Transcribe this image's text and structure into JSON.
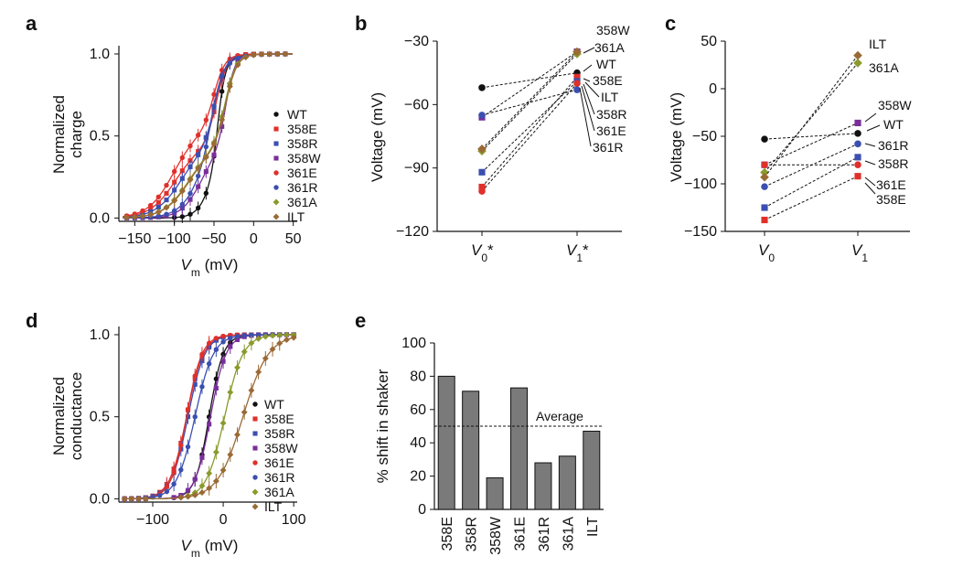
{
  "colors": {
    "WT": "#111111",
    "358E": "#e0302a",
    "358R": "#3b4fb0",
    "358W": "#7a2e9a",
    "361E": "#e0302a",
    "361R": "#3b4fb0",
    "361A": "#8a9a2c",
    "ILT": "#9a6a35",
    "bar": "#7a7a7a"
  },
  "chart_data": [
    {
      "panel": "a",
      "type": "scatter",
      "xlabel": "Vm (mV)",
      "ylabel": "Normalized charge",
      "xlim": [
        -170,
        55
      ],
      "ylim": [
        -0.02,
        1.05
      ],
      "xticks": [
        "-150",
        "-100",
        "-50",
        "0",
        "50"
      ],
      "yticks": [
        "0.0",
        "0.5",
        "1.0"
      ],
      "legend": [
        "WT",
        "358E",
        "358R",
        "358W",
        "361E",
        "361R",
        "361A",
        "ILT"
      ],
      "legend_position": "right",
      "series": [
        {
          "name": "WT",
          "V1": -45,
          "V0": -52,
          "k": 6
        },
        {
          "name": "358E",
          "V1": -47,
          "V0": -99,
          "k": 10
        },
        {
          "name": "358R",
          "V1": -49,
          "V0": -92,
          "k": 10
        },
        {
          "name": "358W",
          "V1": -35,
          "V0": -66,
          "k": 8
        },
        {
          "name": "361E",
          "V1": -50,
          "V0": -101,
          "k": 10
        },
        {
          "name": "361R",
          "V1": -53,
          "V0": -65,
          "k": 9
        },
        {
          "name": "361A",
          "V1": -36,
          "V0": -82,
          "k": 10
        },
        {
          "name": "ILT",
          "V1": -35,
          "V0": -81,
          "k": 10
        }
      ]
    },
    {
      "panel": "b",
      "type": "line",
      "ylabel": "Voltage (mV)",
      "ylim": [
        -120,
        -30
      ],
      "yticks": [
        "-30",
        "-60",
        "-90",
        "-120"
      ],
      "categories": [
        "V0*",
        "V1*"
      ],
      "series": [
        {
          "name": "WT",
          "values": [
            -52,
            -45
          ]
        },
        {
          "name": "358E",
          "values": [
            -99,
            -47
          ]
        },
        {
          "name": "358R",
          "values": [
            -92,
            -49
          ]
        },
        {
          "name": "358W",
          "values": [
            -66,
            -35
          ]
        },
        {
          "name": "361E",
          "values": [
            -101,
            -50
          ]
        },
        {
          "name": "361R",
          "values": [
            -65,
            -53
          ]
        },
        {
          "name": "361A",
          "values": [
            -82,
            -36
          ]
        },
        {
          "name": "ILT",
          "values": [
            -81,
            -35
          ]
        }
      ],
      "annotations": [
        "358W",
        "361A",
        "WT",
        "358E",
        "ILT",
        "358R",
        "361E",
        "361R"
      ]
    },
    {
      "panel": "c",
      "type": "line",
      "ylabel": "Voltage (mV)",
      "ylim": [
        -150,
        50
      ],
      "yticks": [
        "50",
        "0",
        "-50",
        "-100",
        "-150"
      ],
      "categories": [
        "V0",
        "V1"
      ],
      "series": [
        {
          "name": "WT",
          "values": [
            -53,
            -47
          ]
        },
        {
          "name": "358E",
          "values": [
            -138,
            -92
          ]
        },
        {
          "name": "358R",
          "values": [
            -125,
            -72
          ]
        },
        {
          "name": "358W",
          "values": [
            -80,
            -36
          ]
        },
        {
          "name": "361E",
          "values": [
            -80,
            -80
          ]
        },
        {
          "name": "361R",
          "values": [
            -103,
            -58
          ]
        },
        {
          "name": "361A",
          "values": [
            -88,
            27
          ]
        },
        {
          "name": "ILT",
          "values": [
            -93,
            35
          ]
        }
      ],
      "annotations": [
        "ILT",
        "361A",
        "358W",
        "WT",
        "361R",
        "358R",
        "361E",
        "358E"
      ]
    },
    {
      "panel": "d",
      "type": "scatter",
      "xlabel": "Vm (mV)",
      "ylabel": "Normalized conductance",
      "xlim": [
        -148,
        105
      ],
      "ylim": [
        -0.02,
        1.05
      ],
      "xticks": [
        "-100",
        "0",
        "100"
      ],
      "yticks": [
        "0.0",
        "0.5",
        "1.0"
      ],
      "legend": [
        "WT",
        "358E",
        "358R",
        "358W",
        "361E",
        "361R",
        "361A",
        "ILT"
      ],
      "legend_position": "right",
      "series": [
        {
          "name": "WT",
          "Vh": -20,
          "k": 10
        },
        {
          "name": "358E",
          "Vh": -52,
          "k": 12
        },
        {
          "name": "358R",
          "Vh": -50,
          "k": 12
        },
        {
          "name": "358W",
          "Vh": -18,
          "k": 11
        },
        {
          "name": "361E",
          "Vh": -52,
          "k": 11
        },
        {
          "name": "361R",
          "Vh": -40,
          "k": 13
        },
        {
          "name": "361A",
          "Vh": 2,
          "k": 13
        },
        {
          "name": "ILT",
          "Vh": 28,
          "k": 18
        }
      ]
    },
    {
      "panel": "e",
      "type": "bar",
      "ylabel": "% shift in shaker",
      "ylim": [
        0,
        100
      ],
      "yticks": [
        "0",
        "20",
        "40",
        "60",
        "80",
        "100"
      ],
      "categories": [
        "358E",
        "358R",
        "358W",
        "361E",
        "361R",
        "361A",
        "ILT"
      ],
      "values": [
        80,
        71,
        19,
        73,
        28,
        32,
        47
      ],
      "reference_line": 50,
      "reference_label": "Average"
    }
  ]
}
